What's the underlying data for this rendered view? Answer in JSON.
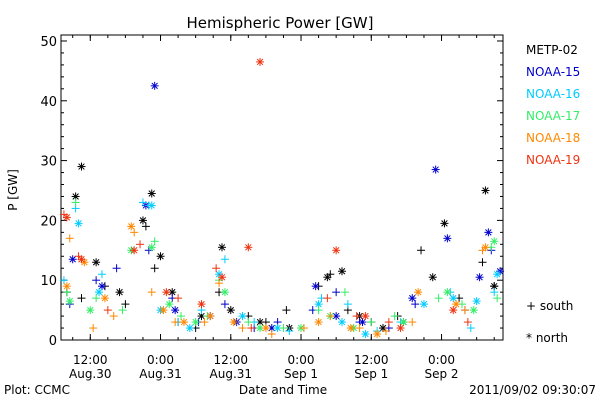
{
  "chart_data": {
    "type": "scatter",
    "title": "Hemispheric Power [GW]",
    "ylabel": "P [GW]",
    "xlabel": "Date and Time",
    "ylim": [
      0,
      51
    ],
    "yticks": [
      0,
      10,
      20,
      30,
      40,
      50
    ],
    "xlim": [
      "2011-08-30 07:00",
      "2011-09-02 10:30"
    ],
    "xticks": [
      {
        "t": "2011-08-30 12:00",
        "line1": "12:00",
        "line2": "Aug.30"
      },
      {
        "t": "2011-08-31 00:00",
        "line1": "0:00",
        "line2": "Aug.31"
      },
      {
        "t": "2011-08-31 12:00",
        "line1": "12:00",
        "line2": "Aug.31"
      },
      {
        "t": "2011-09-01 00:00",
        "line1": "0:00",
        "line2": "Sep 1"
      },
      {
        "t": "2011-09-01 12:00",
        "line1": "12:00",
        "line2": "Sep 1"
      },
      {
        "t": "2011-09-02 00:00",
        "line1": "0:00",
        "line2": "Sep 2"
      }
    ],
    "legend_position": "right",
    "marker_legend": {
      "south": "+ south",
      "north": "* north"
    },
    "series": [
      {
        "name": "METP-02",
        "color": "#000000",
        "south": [
          [
            "2011-08-30 08:00",
            8
          ],
          [
            "2011-08-30 10:30",
            7
          ],
          [
            "2011-08-30 14:30",
            9
          ],
          [
            "2011-08-30 18:00",
            6
          ],
          [
            "2011-08-30 21:30",
            19
          ],
          [
            "2011-08-30 23:00",
            12
          ],
          [
            "2011-08-31 03:00",
            3
          ],
          [
            "2011-08-31 06:00",
            2
          ],
          [
            "2011-08-31 10:00",
            8
          ],
          [
            "2011-08-31 15:00",
            4
          ],
          [
            "2011-08-31 18:00",
            3
          ],
          [
            "2011-08-31 21:30",
            5
          ],
          [
            "2011-09-01 03:00",
            9
          ],
          [
            "2011-09-01 05:00",
            11
          ],
          [
            "2011-09-01 08:00",
            5
          ],
          [
            "2011-09-01 12:00",
            3
          ],
          [
            "2011-09-01 16:30",
            4
          ],
          [
            "2011-09-01 20:30",
            15
          ],
          [
            "2011-09-02 03:00",
            7
          ],
          [
            "2011-09-02 07:00",
            13
          ],
          [
            "2011-09-02 09:00",
            9
          ]
        ],
        "north": [
          [
            "2011-08-30 09:30",
            24
          ],
          [
            "2011-08-30 10:30",
            29
          ],
          [
            "2011-08-30 13:00",
            13
          ],
          [
            "2011-08-30 17:00",
            8
          ],
          [
            "2011-08-30 21:00",
            20
          ],
          [
            "2011-08-30 22:30",
            24.5
          ],
          [
            "2011-08-31 00:00",
            14
          ],
          [
            "2011-08-31 02:00",
            8
          ],
          [
            "2011-08-31 07:00",
            4
          ],
          [
            "2011-08-31 10:30",
            15.5
          ],
          [
            "2011-08-31 12:00",
            5
          ],
          [
            "2011-08-31 17:00",
            3
          ],
          [
            "2011-08-31 22:00",
            2
          ],
          [
            "2011-09-01 04:30",
            10.5
          ],
          [
            "2011-09-01 07:00",
            11.5
          ],
          [
            "2011-09-01 10:00",
            4
          ],
          [
            "2011-09-01 14:00",
            2
          ],
          [
            "2011-09-01 17:30",
            3
          ],
          [
            "2011-09-01 22:30",
            10.5
          ],
          [
            "2011-09-02 00:30",
            19.5
          ],
          [
            "2011-09-02 07:30",
            25
          ],
          [
            "2011-09-02 09:00",
            9
          ]
        ]
      },
      {
        "name": "NOAA-15",
        "color": "#0000cc",
        "south": [
          [
            "2011-08-30 08:30",
            6
          ],
          [
            "2011-08-30 13:00",
            10
          ],
          [
            "2011-08-30 16:30",
            12
          ],
          [
            "2011-08-30 22:00",
            15
          ],
          [
            "2011-08-31 02:00",
            7
          ],
          [
            "2011-08-31 06:30",
            3
          ],
          [
            "2011-08-31 11:00",
            6
          ],
          [
            "2011-08-31 16:00",
            2
          ],
          [
            "2011-08-31 20:00",
            3
          ],
          [
            "2011-09-01 02:00",
            5
          ],
          [
            "2011-09-01 06:00",
            8
          ],
          [
            "2011-09-01 10:00",
            3
          ],
          [
            "2011-09-01 15:00",
            2
          ],
          [
            "2011-09-01 19:30",
            6
          ],
          [
            "2011-09-02 04:00",
            5
          ],
          [
            "2011-09-02 08:30",
            15
          ]
        ],
        "north": [
          [
            "2011-08-30 09:00",
            13.5
          ],
          [
            "2011-08-30 14:00",
            9
          ],
          [
            "2011-08-30 21:30",
            22.5
          ],
          [
            "2011-08-30 23:00",
            42.5
          ],
          [
            "2011-08-31 02:30",
            5
          ],
          [
            "2011-08-31 08:30",
            4
          ],
          [
            "2011-08-31 13:00",
            3
          ],
          [
            "2011-08-31 19:00",
            2
          ],
          [
            "2011-09-01 02:30",
            9
          ],
          [
            "2011-09-01 06:00",
            4
          ],
          [
            "2011-09-01 10:30",
            3
          ],
          [
            "2011-09-01 19:00",
            7
          ],
          [
            "2011-09-01 23:00",
            28.5
          ],
          [
            "2011-09-02 01:00",
            17
          ],
          [
            "2011-09-02 06:30",
            10.5
          ],
          [
            "2011-09-02 08:00",
            18
          ],
          [
            "2011-09-02 10:00",
            11.5
          ]
        ]
      },
      {
        "name": "NOAA-16",
        "color": "#00ccff",
        "south": [
          [
            "2011-08-30 07:30",
            10
          ],
          [
            "2011-08-30 09:30",
            22
          ],
          [
            "2011-08-30 14:00",
            11
          ],
          [
            "2011-08-30 21:00",
            23
          ],
          [
            "2011-08-30 22:00",
            22.5
          ],
          [
            "2011-08-31 03:00",
            3
          ],
          [
            "2011-08-31 07:00",
            5
          ],
          [
            "2011-08-31 11:00",
            13.5
          ],
          [
            "2011-08-31 16:00",
            3
          ],
          [
            "2011-08-31 22:00",
            1.5
          ],
          [
            "2011-09-01 03:30",
            7
          ],
          [
            "2011-09-01 08:00",
            6
          ],
          [
            "2011-09-01 13:00",
            1.5
          ],
          [
            "2011-09-01 17:00",
            3
          ],
          [
            "2011-09-02 01:30",
            8
          ],
          [
            "2011-09-02 05:00",
            2
          ],
          [
            "2011-09-02 09:00",
            8
          ]
        ],
        "north": [
          [
            "2011-08-30 10:00",
            19.5
          ],
          [
            "2011-08-30 13:30",
            8
          ],
          [
            "2011-08-30 22:30",
            22.5
          ],
          [
            "2011-08-31 00:00",
            5
          ],
          [
            "2011-08-31 05:00",
            2
          ],
          [
            "2011-08-31 10:00",
            11
          ],
          [
            "2011-08-31 14:00",
            4
          ],
          [
            "2011-08-31 20:00",
            2
          ],
          [
            "2011-09-01 03:00",
            6
          ],
          [
            "2011-09-01 07:00",
            3
          ],
          [
            "2011-09-01 11:00",
            1
          ],
          [
            "2011-09-01 21:00",
            6
          ],
          [
            "2011-09-02 02:00",
            7
          ],
          [
            "2011-09-02 06:00",
            6.5
          ],
          [
            "2011-09-02 09:30",
            11
          ]
        ]
      },
      {
        "name": "NOAA-17",
        "color": "#33ee66",
        "south": [
          [
            "2011-08-30 08:00",
            8
          ],
          [
            "2011-08-30 09:30",
            23
          ],
          [
            "2011-08-30 13:00",
            7
          ],
          [
            "2011-08-30 17:30",
            5
          ],
          [
            "2011-08-30 23:00",
            16.5
          ],
          [
            "2011-08-31 03:30",
            4
          ],
          [
            "2011-08-31 08:00",
            4
          ],
          [
            "2011-08-31 10:00",
            10
          ],
          [
            "2011-08-31 15:00",
            3
          ],
          [
            "2011-08-31 21:00",
            2
          ],
          [
            "2011-09-01 03:00",
            5
          ],
          [
            "2011-09-01 07:30",
            8
          ],
          [
            "2011-09-01 12:00",
            3
          ],
          [
            "2011-09-01 16:00",
            4
          ],
          [
            "2011-09-01 23:30",
            7
          ],
          [
            "2011-09-02 03:30",
            6
          ],
          [
            "2011-09-02 08:30",
            15.5
          ],
          [
            "2011-09-02 09:30",
            7
          ]
        ],
        "north": [
          [
            "2011-08-30 08:30",
            6.5
          ],
          [
            "2011-08-30 12:00",
            5
          ],
          [
            "2011-08-30 19:00",
            15
          ],
          [
            "2011-08-30 22:30",
            15.5
          ],
          [
            "2011-08-31 01:30",
            6
          ],
          [
            "2011-08-31 06:00",
            3
          ],
          [
            "2011-08-31 11:00",
            8
          ],
          [
            "2011-08-31 17:00",
            2
          ],
          [
            "2011-09-01 00:00",
            2
          ],
          [
            "2011-09-01 05:00",
            4
          ],
          [
            "2011-09-01 09:00",
            2
          ],
          [
            "2011-09-01 17:30",
            3
          ],
          [
            "2011-09-02 01:00",
            8
          ],
          [
            "2011-09-02 05:30",
            5
          ],
          [
            "2011-09-02 09:00",
            16.5
          ]
        ]
      },
      {
        "name": "NOAA-18",
        "color": "#ff8800",
        "south": [
          [
            "2011-08-30 08:30",
            17
          ],
          [
            "2011-08-30 12:30",
            2
          ],
          [
            "2011-08-30 16:00",
            4
          ],
          [
            "2011-08-30 19:30",
            18
          ],
          [
            "2011-08-30 22:30",
            8
          ],
          [
            "2011-08-31 02:30",
            3
          ],
          [
            "2011-08-31 07:30",
            3
          ],
          [
            "2011-08-31 10:00",
            9.5
          ],
          [
            "2011-08-31 14:00",
            2
          ],
          [
            "2011-08-31 19:00",
            1
          ],
          [
            "2011-09-01 00:30",
            2
          ],
          [
            "2011-09-01 05:00",
            4
          ],
          [
            "2011-09-01 10:00",
            2
          ],
          [
            "2011-09-01 14:30",
            1.5
          ],
          [
            "2011-09-01 19:00",
            3
          ],
          [
            "2011-09-02 04:00",
            5
          ],
          [
            "2011-09-02 07:00",
            15
          ]
        ],
        "north": [
          [
            "2011-08-30 08:00",
            9
          ],
          [
            "2011-08-30 11:00",
            13
          ],
          [
            "2011-08-30 14:30",
            7
          ],
          [
            "2011-08-30 19:00",
            19
          ],
          [
            "2011-08-31 00:30",
            5
          ],
          [
            "2011-08-31 04:00",
            3
          ],
          [
            "2011-08-31 08:30",
            4
          ],
          [
            "2011-08-31 12:30",
            3
          ],
          [
            "2011-08-31 18:00",
            2
          ],
          [
            "2011-09-01 03:00",
            3
          ],
          [
            "2011-09-01 08:30",
            2
          ],
          [
            "2011-09-01 13:00",
            1
          ],
          [
            "2011-09-01 20:00",
            8
          ],
          [
            "2011-09-02 02:30",
            6
          ],
          [
            "2011-09-02 07:30",
            15.5
          ]
        ]
      },
      {
        "name": "NOAA-19",
        "color": "#ee3311",
        "south": [
          [
            "2011-08-30 07:30",
            21
          ],
          [
            "2011-08-30 10:00",
            14
          ],
          [
            "2011-08-30 15:00",
            5
          ],
          [
            "2011-08-30 20:30",
            16
          ],
          [
            "2011-08-31 03:00",
            7
          ],
          [
            "2011-08-31 09:30",
            12
          ],
          [
            "2011-08-31 15:30",
            2
          ],
          [
            "2011-09-01 04:30",
            7
          ],
          [
            "2011-09-01 09:30",
            4
          ],
          [
            "2011-09-01 15:00",
            3
          ],
          [
            "2011-09-02 04:30",
            3
          ]
        ],
        "north": [
          [
            "2011-08-30 08:00",
            20.5
          ],
          [
            "2011-08-30 10:30",
            13.5
          ],
          [
            "2011-08-30 19:30",
            15
          ],
          [
            "2011-08-31 01:00",
            8
          ],
          [
            "2011-08-31 07:00",
            6
          ],
          [
            "2011-08-31 10:30",
            10.5
          ],
          [
            "2011-08-31 15:00",
            15.5
          ],
          [
            "2011-08-31 17:00",
            46.5
          ],
          [
            "2011-09-01 06:00",
            15
          ],
          [
            "2011-09-01 11:00",
            4
          ],
          [
            "2011-09-01 17:00",
            2
          ],
          [
            "2011-09-02 02:00",
            5
          ]
        ]
      }
    ]
  },
  "footer": {
    "left": "Plot: CCMC",
    "right": "2011/09/02 09:30:07"
  }
}
